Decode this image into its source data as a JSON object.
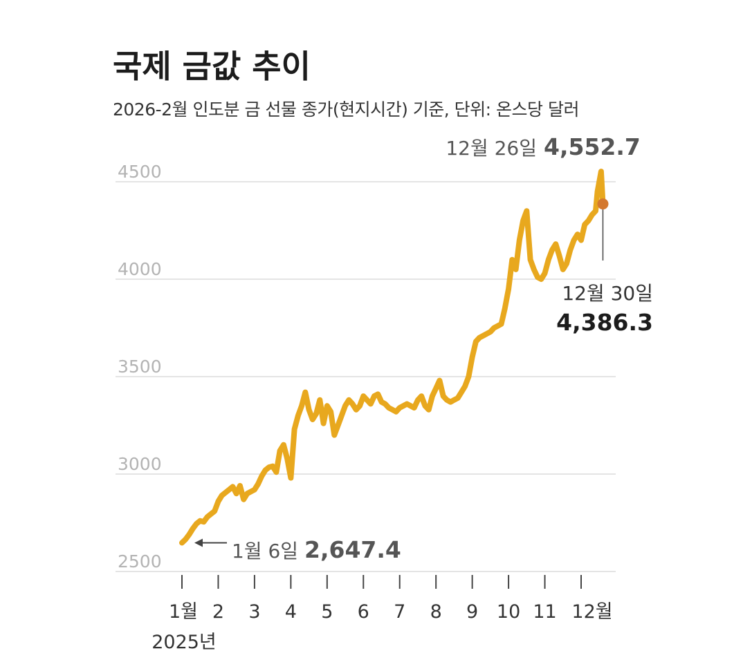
{
  "chart_data": {
    "type": "line",
    "title": "국제 금값 추이",
    "subtitle": "2026-2월 인도분 금 선물 종가(현지시간) 기준, 단위: 온스당 달러",
    "ylim": [
      2500,
      4600
    ],
    "yticks": [
      "2500",
      "3000",
      "3500",
      "4000",
      "4500"
    ],
    "xrange": [
      0.85,
      12.75
    ],
    "xticks": [
      {
        "label": "1월",
        "value": 1
      },
      {
        "label": "2",
        "value": 2
      },
      {
        "label": "3",
        "value": 3
      },
      {
        "label": "4",
        "value": 4
      },
      {
        "label": "5",
        "value": 5
      },
      {
        "label": "6",
        "value": 6
      },
      {
        "label": "7",
        "value": 7
      },
      {
        "label": "8",
        "value": 8
      },
      {
        "label": "9",
        "value": 9
      },
      {
        "label": "10",
        "value": 10
      },
      {
        "label": "11",
        "value": 11
      },
      {
        "label": "12월",
        "value": 12
      }
    ],
    "xsublabel": "2025년",
    "grid": true,
    "line_color": "#E8A81E",
    "marker_color": "#D4782E",
    "series": [
      {
        "x": [
          1.0,
          1.1,
          1.2,
          1.3,
          1.4,
          1.5,
          1.6,
          1.7,
          1.8,
          1.9,
          2.0,
          2.1,
          2.2,
          2.3,
          2.4,
          2.5,
          2.6,
          2.7,
          2.8,
          2.9,
          3.0,
          3.1,
          3.2,
          3.3,
          3.4,
          3.5,
          3.6,
          3.7,
          3.8,
          3.9,
          4.0,
          4.1,
          4.2,
          4.3,
          4.4,
          4.5,
          4.6,
          4.7,
          4.8,
          4.9,
          5.0,
          5.1,
          5.2,
          5.3,
          5.4,
          5.5,
          5.6,
          5.7,
          5.8,
          5.9,
          6.0,
          6.1,
          6.2,
          6.3,
          6.4,
          6.5,
          6.6,
          6.7,
          6.8,
          6.9,
          7.0,
          7.1,
          7.2,
          7.3,
          7.4,
          7.5,
          7.6,
          7.7,
          7.8,
          7.9,
          8.0,
          8.1,
          8.2,
          8.3,
          8.4,
          8.5,
          8.6,
          8.7,
          8.8,
          8.9,
          9.0,
          9.1,
          9.2,
          9.3,
          9.4,
          9.5,
          9.6,
          9.7,
          9.8,
          9.9,
          10.0,
          10.1,
          10.2,
          10.3,
          10.4,
          10.5,
          10.6,
          10.7,
          10.8,
          10.9,
          11.0,
          11.1,
          11.2,
          11.3,
          11.4,
          11.5,
          11.6,
          11.7,
          11.8,
          11.9,
          12.0,
          12.1,
          12.2,
          12.3,
          12.4,
          12.45,
          12.5,
          12.55,
          12.6
        ],
        "y": [
          2647,
          2665,
          2690,
          2720,
          2745,
          2760,
          2755,
          2780,
          2795,
          2810,
          2860,
          2890,
          2905,
          2920,
          2935,
          2900,
          2940,
          2870,
          2900,
          2910,
          2920,
          2950,
          2990,
          3020,
          3035,
          3040,
          3010,
          3120,
          3150,
          3080,
          2980,
          3230,
          3300,
          3350,
          3420,
          3330,
          3280,
          3310,
          3380,
          3260,
          3350,
          3320,
          3200,
          3250,
          3300,
          3350,
          3380,
          3360,
          3330,
          3350,
          3400,
          3380,
          3360,
          3400,
          3410,
          3370,
          3360,
          3340,
          3330,
          3320,
          3340,
          3350,
          3360,
          3350,
          3340,
          3380,
          3400,
          3350,
          3330,
          3400,
          3440,
          3480,
          3400,
          3380,
          3370,
          3380,
          3390,
          3420,
          3450,
          3500,
          3600,
          3680,
          3700,
          3710,
          3720,
          3730,
          3750,
          3760,
          3770,
          3850,
          3950,
          4100,
          4050,
          4200,
          4300,
          4350,
          4100,
          4050,
          4010,
          4000,
          4030,
          4100,
          4150,
          4180,
          4120,
          4050,
          4080,
          4150,
          4200,
          4230,
          4200,
          4280,
          4300,
          4330,
          4350,
          4450,
          4500,
          4552.7,
          4386.3
        ]
      }
    ],
    "annotations": [
      {
        "label": "1월 6일",
        "value": "2,647.4"
      },
      {
        "label": "12월 26일",
        "value": "4,552.7"
      },
      {
        "label": "12월 30일",
        "value": "4,386.3"
      }
    ]
  }
}
